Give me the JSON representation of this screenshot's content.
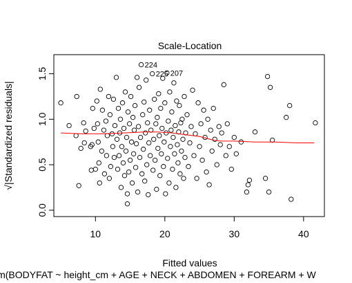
{
  "chart_data": {
    "type": "scatter",
    "title": "Scale-Location",
    "xlabel": "Fitted values",
    "ylabel": "√|Standardized residuals|",
    "caption": "lm(BODYFAT ~ height_cm + AGE + NECK + ABDOMEN + FOREARM + W",
    "xlim": [
      4.0,
      43.0
    ],
    "ylim": [
      -0.07,
      1.71
    ],
    "x_ticks": [
      "10",
      "20",
      "30",
      "40"
    ],
    "x_tick_values": [
      10,
      20,
      30,
      40
    ],
    "y_ticks": [
      "0.0",
      "0.5",
      "1.0",
      "1.5"
    ],
    "y_tick_values": [
      0.0,
      0.5,
      1.0,
      1.5
    ],
    "grid": false,
    "point_color": "#000000",
    "smooth_color": "#ff0000",
    "labeled_points": [
      {
        "label": "224",
        "x": 16.6,
        "y": 1.6
      },
      {
        "label": "225",
        "x": 18.2,
        "y": 1.5
      },
      {
        "label": "207",
        "x": 20.3,
        "y": 1.51
      }
    ],
    "smooth": {
      "x": [
        5.0,
        8.0,
        11.0,
        14.0,
        17.0,
        19.0,
        21.0,
        23.0,
        25.0,
        27.0,
        28.0,
        30.0,
        33.0,
        36.0,
        39.0,
        41.5
      ],
      "y": [
        0.85,
        0.84,
        0.84,
        0.85,
        0.86,
        0.86,
        0.85,
        0.83,
        0.81,
        0.77,
        0.76,
        0.76,
        0.75,
        0.75,
        0.74,
        0.74
      ]
    },
    "points": [
      [
        5.0,
        1.18
      ],
      [
        6.2,
        0.93
      ],
      [
        7.2,
        0.82
      ],
      [
        7.3,
        1.25
      ],
      [
        7.6,
        0.27
      ],
      [
        7.9,
        0.68
      ],
      [
        8.3,
        0.96
      ],
      [
        8.4,
        0.74
      ],
      [
        8.6,
        0.87
      ],
      [
        9.3,
        0.7
      ],
      [
        9.4,
        0.44
      ],
      [
        9.5,
        0.72
      ],
      [
        9.6,
        1.12
      ],
      [
        9.8,
        0.9
      ],
      [
        10.0,
        0.45
      ],
      [
        10.2,
        1.2
      ],
      [
        10.3,
        0.95
      ],
      [
        10.4,
        0.75
      ],
      [
        10.5,
        0.52
      ],
      [
        10.6,
        0.3
      ],
      [
        10.7,
        1.33
      ],
      [
        10.9,
        0.65
      ],
      [
        11.0,
        1.1
      ],
      [
        11.2,
        0.88
      ],
      [
        11.3,
        0.4
      ],
      [
        11.5,
        0.98
      ],
      [
        11.6,
        0.6
      ],
      [
        11.7,
        0.82
      ],
      [
        11.9,
        1.25
      ],
      [
        12.0,
        0.35
      ],
      [
        12.1,
        1.05
      ],
      [
        12.2,
        0.48
      ],
      [
        12.4,
        0.84
      ],
      [
        12.5,
        0.7
      ],
      [
        12.6,
        1.22
      ],
      [
        12.7,
        0.58
      ],
      [
        12.8,
        0.93
      ],
      [
        13.0,
        1.46
      ],
      [
        13.1,
        0.78
      ],
      [
        13.2,
        0.45
      ],
      [
        13.3,
        1.12
      ],
      [
        13.4,
        0.6
      ],
      [
        13.5,
        0.85
      ],
      [
        13.6,
        1.0
      ],
      [
        13.7,
        0.25
      ],
      [
        13.8,
        0.7
      ],
      [
        13.9,
        1.18
      ],
      [
        14.0,
        0.52
      ],
      [
        14.1,
        0.9
      ],
      [
        14.2,
        0.38
      ],
      [
        14.3,
        1.3
      ],
      [
        14.4,
        0.65
      ],
      [
        14.5,
        0.8
      ],
      [
        14.6,
        0.18
      ],
      [
        14.6,
        0.07
      ],
      [
        14.7,
        1.08
      ],
      [
        14.8,
        0.42
      ],
      [
        14.9,
        0.95
      ],
      [
        15.0,
        0.55
      ],
      [
        15.1,
        1.25
      ],
      [
        15.2,
        0.75
      ],
      [
        15.3,
        0.3
      ],
      [
        15.4,
        1.02
      ],
      [
        15.5,
        0.62
      ],
      [
        15.6,
        0.88
      ],
      [
        15.7,
        1.15
      ],
      [
        15.8,
        0.47
      ],
      [
        15.9,
        0.73
      ],
      [
        16.0,
        1.46
      ],
      [
        16.1,
        0.2
      ],
      [
        16.2,
        0.92
      ],
      [
        16.3,
        1.35
      ],
      [
        16.4,
        0.58
      ],
      [
        16.5,
        0.8
      ],
      [
        16.6,
        1.6
      ],
      [
        16.7,
        0.4
      ],
      [
        16.8,
        1.05
      ],
      [
        16.9,
        0.67
      ],
      [
        17.0,
        1.19
      ],
      [
        17.1,
        0.32
      ],
      [
        17.2,
        0.85
      ],
      [
        17.3,
        1.43
      ],
      [
        17.4,
        0.5
      ],
      [
        17.5,
        0.96
      ],
      [
        17.6,
        0.17
      ],
      [
        17.7,
        0.74
      ],
      [
        17.8,
        1.1
      ],
      [
        17.9,
        0.6
      ],
      [
        18.0,
        0.88
      ],
      [
        18.2,
        1.5
      ],
      [
        18.3,
        0.44
      ],
      [
        18.4,
        0.78
      ],
      [
        18.5,
        1.22
      ],
      [
        18.6,
        0.55
      ],
      [
        18.7,
        0.95
      ],
      [
        18.8,
        0.23
      ],
      [
        18.9,
        1.02
      ],
      [
        19.0,
        0.68
      ],
      [
        19.1,
        1.28
      ],
      [
        19.2,
        0.82
      ],
      [
        19.3,
        0.38
      ],
      [
        19.4,
        1.12
      ],
      [
        19.5,
        0.62
      ],
      [
        19.6,
        0.9
      ],
      [
        19.7,
        1.45
      ],
      [
        19.8,
        0.48
      ],
      [
        19.9,
        0.75
      ],
      [
        20.0,
        1.18
      ],
      [
        20.1,
        0.18
      ],
      [
        20.2,
        0.85
      ],
      [
        20.3,
        1.51
      ],
      [
        20.4,
        0.57
      ],
      [
        20.5,
        0.98
      ],
      [
        20.6,
        0.3
      ],
      [
        20.7,
        1.3
      ],
      [
        20.8,
        0.7
      ],
      [
        20.9,
        0.88
      ],
      [
        21.0,
        1.08
      ],
      [
        21.1,
        0.45
      ],
      [
        21.2,
        0.8
      ],
      [
        21.3,
        1.4
      ],
      [
        21.4,
        0.62
      ],
      [
        21.5,
        0.93
      ],
      [
        21.6,
        0.25
      ],
      [
        21.7,
        1.2
      ],
      [
        21.8,
        0.72
      ],
      [
        21.9,
        0.52
      ],
      [
        22.0,
        0.86
      ],
      [
        22.1,
        1.15
      ],
      [
        22.2,
        0.4
      ],
      [
        22.3,
        0.96
      ],
      [
        22.4,
        0.65
      ],
      [
        22.5,
        1.0
      ],
      [
        22.6,
        0.78
      ],
      [
        22.7,
        0.35
      ],
      [
        22.8,
        1.25
      ],
      [
        22.9,
        0.58
      ],
      [
        23.0,
        0.85
      ],
      [
        23.2,
        1.05
      ],
      [
        23.4,
        0.48
      ],
      [
        23.6,
        0.74
      ],
      [
        23.8,
        0.92
      ],
      [
        24.0,
        1.32
      ],
      [
        24.2,
        0.6
      ],
      [
        24.4,
        0.84
      ],
      [
        24.6,
        0.35
      ],
      [
        24.8,
        1.18
      ],
      [
        25.0,
        0.7
      ],
      [
        25.2,
        0.95
      ],
      [
        25.4,
        0.55
      ],
      [
        25.6,
        1.1
      ],
      [
        25.8,
        0.8
      ],
      [
        26.0,
        0.42
      ],
      [
        26.2,
        1.0
      ],
      [
        26.4,
        0.28
      ],
      [
        26.6,
        0.88
      ],
      [
        26.8,
        0.65
      ],
      [
        27.0,
        1.12
      ],
      [
        27.2,
        0.78
      ],
      [
        27.5,
        0.5
      ],
      [
        27.8,
        0.92
      ],
      [
        28.0,
        0.72
      ],
      [
        28.2,
        0.85
      ],
      [
        28.5,
        1.38
      ],
      [
        28.8,
        0.6
      ],
      [
        29.0,
        0.95
      ],
      [
        29.3,
        0.7
      ],
      [
        29.6,
        0.45
      ],
      [
        30.0,
        0.8
      ],
      [
        30.3,
        0.62
      ],
      [
        31.0,
        0.75
      ],
      [
        31.8,
        0.2
      ],
      [
        32.0,
        0.28
      ],
      [
        32.2,
        0.33
      ],
      [
        33.0,
        0.86
      ],
      [
        34.5,
        0.35
      ],
      [
        34.8,
        1.47
      ],
      [
        35.0,
        0.2
      ],
      [
        35.2,
        1.35
      ],
      [
        35.5,
        0.77
      ],
      [
        37.5,
        1.02
      ],
      [
        38.0,
        1.15
      ],
      [
        38.2,
        0.12
      ],
      [
        41.7,
        0.96
      ]
    ]
  }
}
